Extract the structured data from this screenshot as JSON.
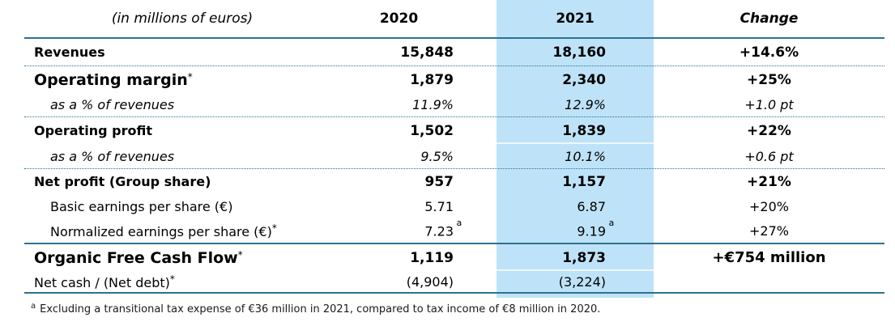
{
  "colors": {
    "highlight": "#bee3f8",
    "rule": "#2e7191",
    "highlight_separator": "#edf7fd"
  },
  "header": {
    "unit_label": "(in millions of euros)",
    "col_2020": "2020",
    "col_2021": "2021",
    "col_change": "Change"
  },
  "rows": [
    {
      "label": "Revenues",
      "v2020": "15,848",
      "v2021": "18,160",
      "change": "+14.6%"
    },
    {
      "label": "Operating margin",
      "label_sup": "*",
      "v2020": "1,879",
      "v2021": "2,340",
      "change": "+25%"
    },
    {
      "label": "as a % of revenues",
      "v2020": "11.9%",
      "v2021": "12.9%",
      "change": "+1.0 pt"
    },
    {
      "label": "Operating profit",
      "v2020": "1,502",
      "v2021": "1,839",
      "change": "+22%"
    },
    {
      "label": "as a % of revenues",
      "v2020": "9.5%",
      "v2021": "10.1%",
      "change": "+0.6 pt"
    },
    {
      "label": "Net profit (Group share)",
      "v2020": "957",
      "v2021": "1,157",
      "change": "+21%"
    },
    {
      "label": "Basic earnings per share (€)",
      "v2020": "5.71",
      "v2021": "6.87",
      "change": "+20%"
    },
    {
      "label": "Normalized earnings per share (€)",
      "label_sup": "*",
      "v2020": "7.23",
      "v2020_sup": " a",
      "v2021": "9.19",
      "v2021_sup": " a",
      "change": "+27%"
    },
    {
      "label": "Organic Free Cash Flow",
      "label_sup": "*",
      "v2020": "1,119",
      "v2021": "1,873",
      "change": "+€754 million"
    },
    {
      "label": "Net cash / (Net debt)",
      "label_sup": "*",
      "v2020": "(4,904)",
      "v2021": "(3,224)",
      "change": ""
    }
  ],
  "footnote": {
    "marker": "a",
    "text": "Excluding a transitional tax expense of €36 million in 2021, compared to tax income of €8 million in 2020."
  }
}
